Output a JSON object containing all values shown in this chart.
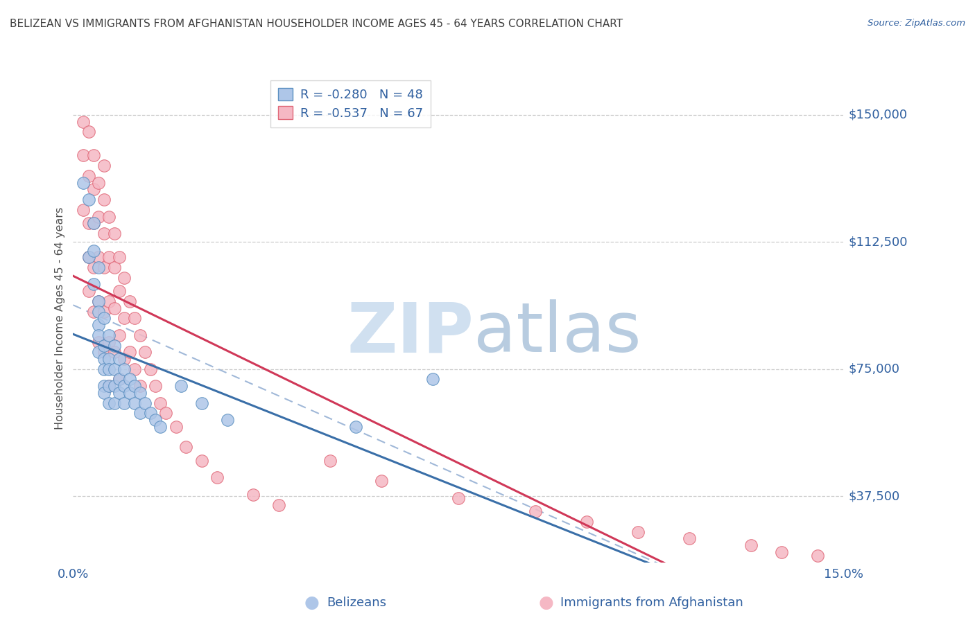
{
  "title": "BELIZEAN VS IMMIGRANTS FROM AFGHANISTAN HOUSEHOLDER INCOME AGES 45 - 64 YEARS CORRELATION CHART",
  "source": "Source: ZipAtlas.com",
  "ylabel": "Householder Income Ages 45 - 64 years",
  "xlim": [
    0.0,
    0.15
  ],
  "ylim": [
    18000,
    162000
  ],
  "yticks": [
    37500,
    75000,
    112500,
    150000
  ],
  "ytick_labels": [
    "$37,500",
    "$75,000",
    "$112,500",
    "$150,000"
  ],
  "xticks": [
    0.0,
    0.15
  ],
  "xtick_labels": [
    "0.0%",
    "15.0%"
  ],
  "legend_r_blue": "-0.280",
  "legend_n_blue": "48",
  "legend_r_pink": "-0.537",
  "legend_n_pink": "67",
  "blue_fill": "#aec6e8",
  "pink_fill": "#f5b8c4",
  "blue_edge": "#5a8fc0",
  "pink_edge": "#e06878",
  "blue_line": "#3a6fa8",
  "pink_line": "#d03858",
  "dashed_line": "#a0b8d8",
  "title_color": "#404040",
  "label_color": "#505050",
  "tick_color": "#3060a0",
  "watermark_color": "#d0e0f0",
  "blue_x": [
    0.002,
    0.003,
    0.003,
    0.004,
    0.004,
    0.004,
    0.005,
    0.005,
    0.005,
    0.005,
    0.005,
    0.005,
    0.006,
    0.006,
    0.006,
    0.006,
    0.006,
    0.006,
    0.007,
    0.007,
    0.007,
    0.007,
    0.007,
    0.008,
    0.008,
    0.008,
    0.008,
    0.009,
    0.009,
    0.009,
    0.01,
    0.01,
    0.01,
    0.011,
    0.011,
    0.012,
    0.012,
    0.013,
    0.013,
    0.014,
    0.015,
    0.016,
    0.017,
    0.021,
    0.025,
    0.03,
    0.055,
    0.07
  ],
  "blue_y": [
    130000,
    125000,
    108000,
    110000,
    100000,
    118000,
    95000,
    105000,
    88000,
    92000,
    80000,
    85000,
    90000,
    82000,
    78000,
    75000,
    70000,
    68000,
    85000,
    78000,
    75000,
    70000,
    65000,
    82000,
    75000,
    70000,
    65000,
    78000,
    72000,
    68000,
    75000,
    70000,
    65000,
    72000,
    68000,
    70000,
    65000,
    68000,
    62000,
    65000,
    62000,
    60000,
    58000,
    70000,
    65000,
    60000,
    58000,
    72000
  ],
  "pink_x": [
    0.002,
    0.002,
    0.002,
    0.003,
    0.003,
    0.003,
    0.003,
    0.003,
    0.004,
    0.004,
    0.004,
    0.004,
    0.004,
    0.005,
    0.005,
    0.005,
    0.005,
    0.005,
    0.006,
    0.006,
    0.006,
    0.006,
    0.006,
    0.006,
    0.007,
    0.007,
    0.007,
    0.007,
    0.007,
    0.008,
    0.008,
    0.008,
    0.008,
    0.009,
    0.009,
    0.009,
    0.009,
    0.01,
    0.01,
    0.01,
    0.011,
    0.011,
    0.012,
    0.012,
    0.013,
    0.013,
    0.014,
    0.015,
    0.016,
    0.017,
    0.018,
    0.02,
    0.022,
    0.025,
    0.028,
    0.035,
    0.04,
    0.05,
    0.06,
    0.075,
    0.09,
    0.1,
    0.11,
    0.12,
    0.132,
    0.138,
    0.145
  ],
  "pink_y": [
    148000,
    138000,
    122000,
    145000,
    132000,
    118000,
    108000,
    98000,
    138000,
    128000,
    118000,
    105000,
    92000,
    130000,
    120000,
    108000,
    95000,
    83000,
    125000,
    115000,
    105000,
    92000,
    80000,
    135000,
    120000,
    108000,
    95000,
    83000,
    70000,
    115000,
    105000,
    93000,
    80000,
    108000,
    98000,
    85000,
    72000,
    102000,
    90000,
    78000,
    95000,
    80000,
    90000,
    75000,
    85000,
    70000,
    80000,
    75000,
    70000,
    65000,
    62000,
    58000,
    52000,
    48000,
    43000,
    38000,
    35000,
    48000,
    42000,
    37000,
    33000,
    30000,
    27000,
    25000,
    23000,
    21000,
    20000
  ]
}
